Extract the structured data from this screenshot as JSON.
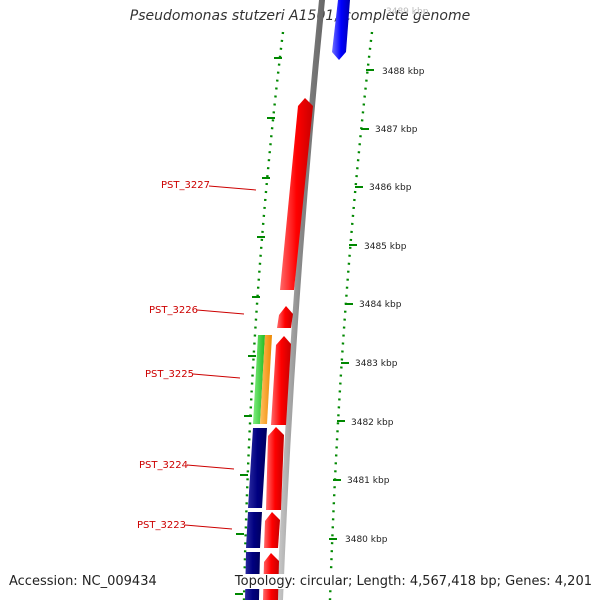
{
  "title": "Pseudomonas stutzeri A1501, complete genome",
  "accession": "Accession: NC_009434",
  "summary": "Topology: circular; Length: 4,567,418 bp; Genes: 4,201",
  "scale_ticks": [
    {
      "label": "3489 kbp",
      "faded": true
    },
    {
      "label": "3488 kbp"
    },
    {
      "label": "3487 kbp"
    },
    {
      "label": "3486 kbp"
    },
    {
      "label": "3485 kbp"
    },
    {
      "label": "3484 kbp"
    },
    {
      "label": "3483 kbp"
    },
    {
      "label": "3482 kbp"
    },
    {
      "label": "3481 kbp"
    },
    {
      "label": "3480 kbp"
    }
  ],
  "gene_labels": [
    "PST_3227",
    "PST_3226",
    "PST_3225",
    "PST_3224",
    "PST_3223"
  ],
  "colors": {
    "forward_strand": "#ff0000",
    "reverse_strand": "#0000ff",
    "navy_feature": "#000080",
    "green_feature": "#33cc33",
    "orange_feature": "#ff9900",
    "backbone": "#999999",
    "dotted_ring": "#008800",
    "label_text": "#cc0000"
  }
}
